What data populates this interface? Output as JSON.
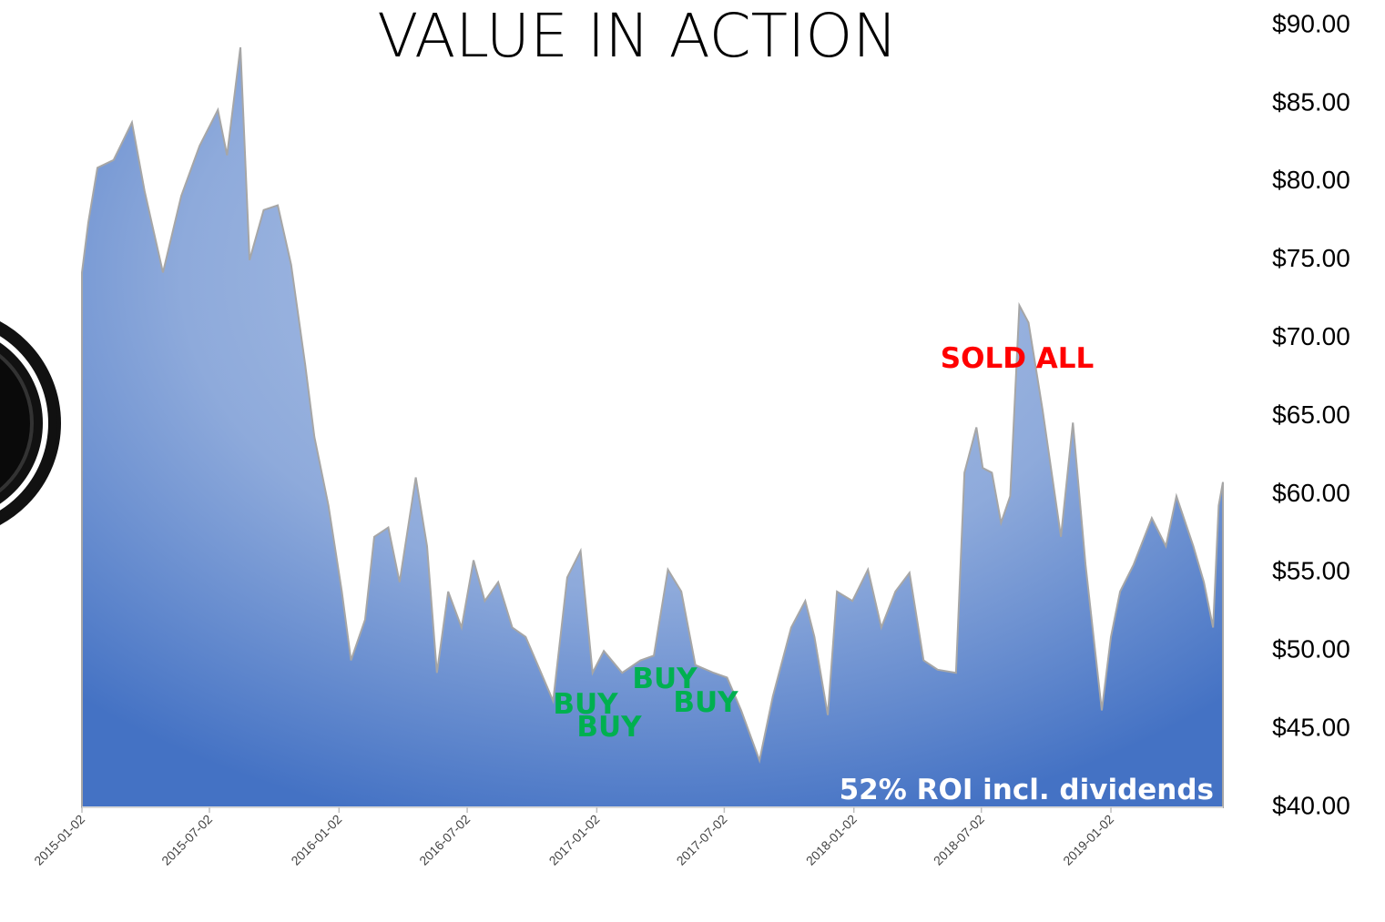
{
  "chart_data": {
    "type": "area",
    "title": "VALUE IN ACTION",
    "annotations": [
      "BUY",
      "BUY",
      "BUY",
      "BUY",
      "SOLD ALL",
      "52% ROI incl. dividends"
    ],
    "x": [
      "2015-01-02",
      "2015-01-11",
      "2015-01-24",
      "2015-02-16",
      "2015-03-14",
      "2015-04-01",
      "2015-04-27",
      "2015-05-23",
      "2015-06-18",
      "2015-07-14",
      "2015-07-27",
      "2015-08-15",
      "2015-08-28",
      "2015-09-17",
      "2015-10-07",
      "2015-10-26",
      "2015-11-15",
      "2015-11-28",
      "2015-12-18",
      "2016-01-06",
      "2016-01-19",
      "2016-02-08",
      "2016-02-21",
      "2016-03-12",
      "2016-03-28",
      "2016-04-20",
      "2016-05-06",
      "2016-05-20",
      "2016-06-05",
      "2016-06-24",
      "2016-07-11",
      "2016-07-27",
      "2016-08-15",
      "2016-09-04",
      "2016-09-23",
      "2016-10-13",
      "2016-11-01",
      "2016-11-21",
      "2016-12-10",
      "2016-12-27",
      "2017-01-12",
      "2017-02-07",
      "2017-03-05",
      "2017-03-24",
      "2017-04-13",
      "2017-05-02",
      "2017-05-22",
      "2017-06-17",
      "2017-07-06",
      "2017-07-26",
      "2017-08-21",
      "2017-09-09",
      "2017-10-05",
      "2017-10-25",
      "2017-11-07",
      "2017-11-26",
      "2017-12-09",
      "2017-12-31",
      "2018-01-22",
      "2018-02-10",
      "2018-03-02",
      "2018-03-22",
      "2018-04-11",
      "2018-05-01",
      "2018-05-27",
      "2018-06-08",
      "2018-06-25",
      "2018-07-04",
      "2018-07-17",
      "2018-07-30",
      "2018-08-12",
      "2018-08-25",
      "2018-09-07",
      "2018-09-27",
      "2018-10-23",
      "2018-11-09",
      "2018-11-27",
      "2018-12-20",
      "2019-01-02",
      "2019-01-15",
      "2019-02-03",
      "2019-03-01",
      "2019-03-21",
      "2019-04-05",
      "2019-04-29",
      "2019-05-14",
      "2019-05-27",
      "2019-06-04",
      "2019-06-10"
    ],
    "values": [
      74.2,
      77.4,
      80.9,
      81.4,
      83.8,
      79.4,
      74.2,
      79.1,
      82.3,
      84.6,
      81.7,
      88.6,
      75.0,
      78.2,
      78.5,
      74.7,
      68.3,
      63.7,
      59.3,
      53.8,
      49.4,
      52.0,
      57.3,
      57.9,
      54.4,
      61.1,
      56.7,
      48.6,
      53.8,
      51.5,
      55.8,
      53.2,
      54.4,
      51.5,
      50.9,
      48.8,
      46.8,
      54.7,
      56.4,
      48.6,
      50.0,
      48.6,
      49.4,
      49.7,
      55.2,
      53.8,
      49.1,
      48.6,
      48.3,
      46.2,
      43.0,
      47.1,
      51.5,
      53.2,
      50.9,
      45.9,
      53.8,
      53.2,
      55.2,
      51.5,
      53.8,
      55.0,
      49.4,
      48.8,
      48.6,
      61.4,
      64.3,
      61.7,
      61.4,
      58.2,
      59.9,
      72.1,
      71.0,
      65.4,
      57.3,
      64.6,
      55.5,
      46.2,
      50.9,
      53.8,
      55.5,
      58.5,
      56.7,
      59.9,
      56.7,
      54.4,
      51.5,
      59.3,
      60.8
    ],
    "xlim": [
      "2015-01-02",
      "2019-06-10"
    ],
    "xticks": [
      "2015-01-02",
      "2015-07-02",
      "2016-01-02",
      "2016-07-02",
      "2017-01-02",
      "2017-07-02",
      "2018-01-02",
      "2018-07-02",
      "2019-01-02"
    ],
    "ylim": [
      40,
      90
    ],
    "yticks": [
      {
        "value": 40,
        "label": "$40.00"
      },
      {
        "value": 45,
        "label": "$45.00"
      },
      {
        "value": 50,
        "label": "$50.00"
      },
      {
        "value": 55,
        "label": "$55.00"
      },
      {
        "value": 60,
        "label": "$60.00"
      },
      {
        "value": 65,
        "label": "$65.00"
      },
      {
        "value": 70,
        "label": "$70.00"
      },
      {
        "value": 75,
        "label": "$75.00"
      },
      {
        "value": 80,
        "label": "$80.00"
      },
      {
        "value": 85,
        "label": "$85.00"
      },
      {
        "value": 90,
        "label": "$90.00"
      }
    ],
    "color": "#4472c4",
    "grid": false
  }
}
